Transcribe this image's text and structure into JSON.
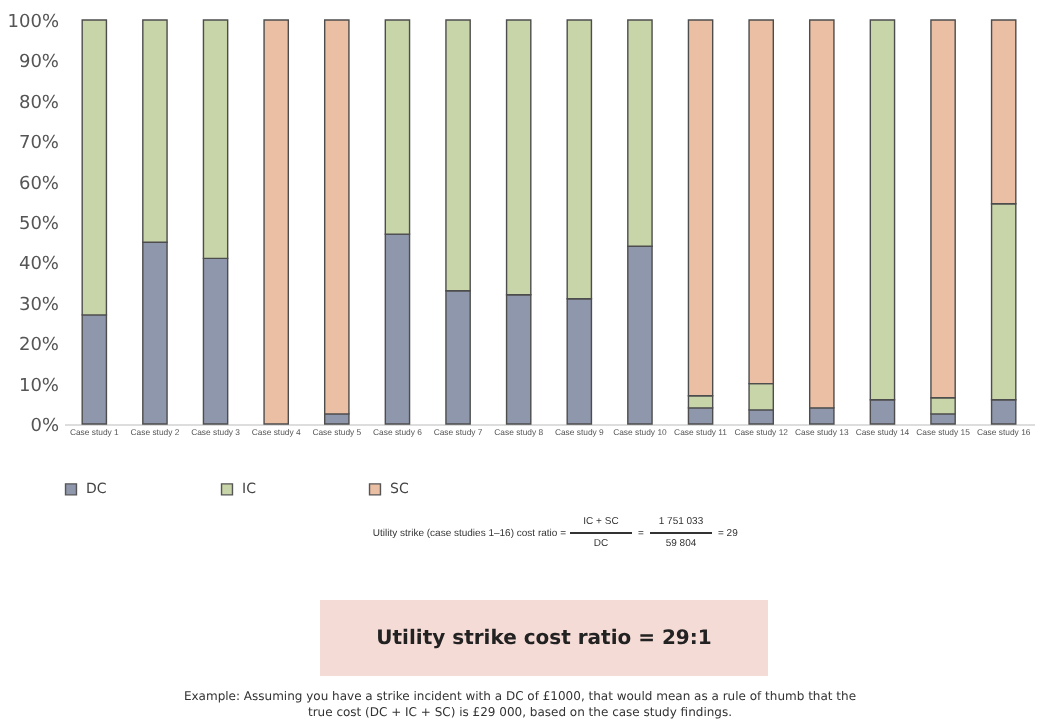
{
  "chart_data": {
    "type": "bar",
    "stacked": true,
    "categories": [
      "Case study 1",
      "Case study 2",
      "Case study 3",
      "Case study 4",
      "Case study 5",
      "Case study 6",
      "Case study 7",
      "Case study 8",
      "Case study 9",
      "Case study 10",
      "Case study 11",
      "Case study 12",
      "Case study 13",
      "Case study 14",
      "Case study 15",
      "Case study 16"
    ],
    "series": [
      {
        "name": "DC",
        "color": "#8e97ab",
        "values": [
          27,
          45,
          41,
          0,
          2.5,
          47,
          33,
          32,
          31,
          44,
          4,
          3.5,
          4,
          6,
          2.5,
          6
        ]
      },
      {
        "name": "IC",
        "color": "#c8d5a8",
        "values": [
          73,
          55,
          59,
          0,
          0,
          53,
          67,
          68,
          69,
          56,
          3,
          6.5,
          0,
          94,
          4,
          48.5
        ]
      },
      {
        "name": "SC",
        "color": "#ebbfa4",
        "values": [
          0,
          0,
          0,
          100,
          97.5,
          0,
          0,
          0,
          0,
          0,
          93,
          90,
          96,
          0,
          93.5,
          45.5
        ]
      }
    ],
    "ylim": [
      0,
      100
    ],
    "yticks": [
      {
        "value": 0,
        "label": "0%"
      },
      {
        "value": 10,
        "label": "10%"
      },
      {
        "value": 20,
        "label": "20%"
      },
      {
        "value": 30,
        "label": "30%"
      },
      {
        "value": 40,
        "label": "40%"
      },
      {
        "value": 50,
        "label": "50%"
      },
      {
        "value": 60,
        "label": "60%"
      },
      {
        "value": 70,
        "label": "70%"
      },
      {
        "value": 80,
        "label": "80%"
      },
      {
        "value": 90,
        "label": "90%"
      },
      {
        "value": 100,
        "label": "100%"
      }
    ],
    "grid": false,
    "legend": "bottom",
    "annotations": [
      "Utility strike (case studies 1–16) cost ratio =",
      "IC + SC",
      "DC",
      "=",
      "1 751 033",
      "59 804",
      "= 29",
      "Utility strike cost ratio = 29:1",
      "Example: Assuming you have a strike incident with a DC of £1000, that would mean as a rule of thumb that the true cost (DC + IC + SC) is £29 000, based on the case study findings."
    ]
  }
}
